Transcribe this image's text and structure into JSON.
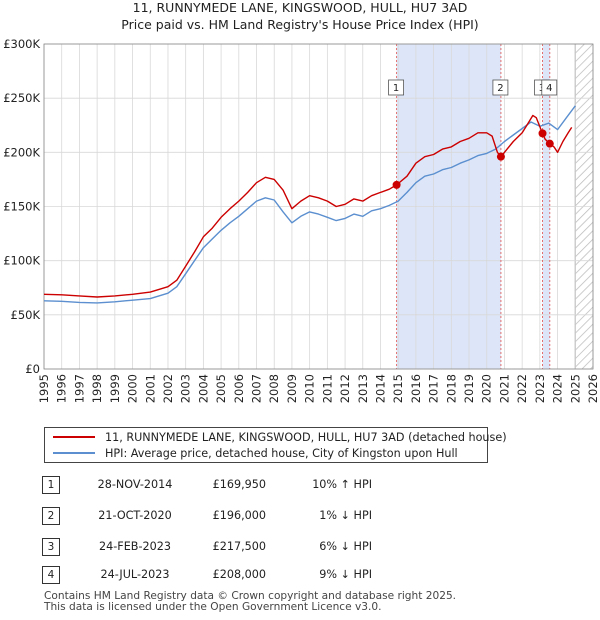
{
  "chart_data": {
    "type": "line",
    "title": "11, RUNNYMEDE LANE, KINGSWOOD, HULL, HU7 3AD",
    "subtitle": "Price paid vs. HM Land Registry's House Price Index (HPI)",
    "xlabel": "",
    "ylabel": "",
    "xlim": [
      1995,
      2026
    ],
    "ylim": [
      0,
      300000
    ],
    "x_ticks": [
      1995,
      1996,
      1997,
      1998,
      1999,
      2000,
      2001,
      2002,
      2003,
      2004,
      2005,
      2006,
      2007,
      2008,
      2009,
      2010,
      2011,
      2012,
      2013,
      2014,
      2015,
      2016,
      2017,
      2018,
      2019,
      2020,
      2021,
      2022,
      2023,
      2024,
      2025,
      2026
    ],
    "y_ticks": [
      {
        "value": 0,
        "label": "£0"
      },
      {
        "value": 50000,
        "label": "£50K"
      },
      {
        "value": 100000,
        "label": "£100K"
      },
      {
        "value": 150000,
        "label": "£150K"
      },
      {
        "value": 200000,
        "label": "£200K"
      },
      {
        "value": 250000,
        "label": "£250K"
      },
      {
        "value": 300000,
        "label": "£300K"
      }
    ],
    "grid": true,
    "forecast_from": 2025.0,
    "series": [
      {
        "name": "11, RUNNYMEDE LANE, KINGSWOOD, HULL, HU7 3AD (detached house)",
        "color": "#cc0000",
        "x": [
          1995,
          1996,
          1997,
          1998,
          1999,
          2000,
          2001,
          2002,
          2002.5,
          2003,
          2003.5,
          2004,
          2004.5,
          2005,
          2005.5,
          2006,
          2006.5,
          2007,
          2007.5,
          2008,
          2008.5,
          2009,
          2009.5,
          2010,
          2010.5,
          2011,
          2011.5,
          2012,
          2012.5,
          2013,
          2013.5,
          2014,
          2014.5,
          2014.91,
          2015.5,
          2016,
          2016.5,
          2017,
          2017.5,
          2018,
          2018.5,
          2019,
          2019.5,
          2020,
          2020.3,
          2020.6,
          2020.8,
          2021,
          2021.5,
          2022,
          2022.3,
          2022.6,
          2022.8,
          2023.15,
          2023.3,
          2023.56,
          2023.8,
          2024,
          2024.3,
          2024.6,
          2024.8
        ],
        "y": [
          69000,
          68500,
          67500,
          66500,
          67500,
          69000,
          71000,
          76000,
          82000,
          95000,
          108000,
          122000,
          130000,
          140000,
          148000,
          155000,
          163000,
          172000,
          177000,
          175000,
          165000,
          148000,
          155000,
          160000,
          158000,
          155000,
          150000,
          152000,
          157000,
          155000,
          160000,
          163000,
          166000,
          169950,
          178000,
          190000,
          196000,
          198000,
          203000,
          205000,
          210000,
          213000,
          218000,
          218000,
          215000,
          200000,
          196000,
          200000,
          210000,
          218000,
          226000,
          234000,
          232000,
          217500,
          212000,
          208000,
          205000,
          200000,
          210000,
          218000,
          223000
        ]
      },
      {
        "name": "HPI: Average price, detached house, City of Kingston upon Hull",
        "color": "#5b8fcf",
        "x": [
          1995,
          1996,
          1997,
          1998,
          1999,
          2000,
          2001,
          2002,
          2002.5,
          2003,
          2003.5,
          2004,
          2004.5,
          2005,
          2005.5,
          2006,
          2006.5,
          2007,
          2007.5,
          2008,
          2008.5,
          2009,
          2009.5,
          2010,
          2010.5,
          2011,
          2011.5,
          2012,
          2012.5,
          2013,
          2013.5,
          2014,
          2014.5,
          2015,
          2015.5,
          2016,
          2016.5,
          2017,
          2017.5,
          2018,
          2018.5,
          2019,
          2019.5,
          2020,
          2020.5,
          2021,
          2021.5,
          2022,
          2022.5,
          2023,
          2023.5,
          2024,
          2024.5,
          2025
        ],
        "y": [
          63000,
          62500,
          61500,
          61000,
          62000,
          63500,
          65000,
          70000,
          76000,
          88000,
          100000,
          112000,
          120000,
          128000,
          135000,
          141000,
          148000,
          155000,
          158000,
          156000,
          145000,
          135000,
          141000,
          145000,
          143000,
          140000,
          137000,
          139000,
          143000,
          141000,
          146000,
          148000,
          151000,
          155000,
          163000,
          172000,
          178000,
          180000,
          184000,
          186000,
          190000,
          193000,
          197000,
          199000,
          203000,
          210000,
          216000,
          222000,
          228000,
          224000,
          227000,
          221000,
          232000,
          243000
        ]
      }
    ],
    "transactions": [
      {
        "id": "1",
        "x": 2014.91,
        "y": 169950
      },
      {
        "id": "2",
        "x": 2020.8,
        "y": 196000
      },
      {
        "id": "3",
        "x": 2023.15,
        "y": 217500
      },
      {
        "id": "4",
        "x": 2023.56,
        "y": 208000
      }
    ],
    "highlight_ranges": [
      [
        2014.91,
        2020.8
      ],
      [
        2023.15,
        2023.56
      ]
    ]
  },
  "legend": {
    "property_label": "11, RUNNYMEDE LANE, KINGSWOOD, HULL, HU7 3AD (detached house)",
    "hpi_label": "HPI: Average price, detached house, City of Kingston upon Hull",
    "property_color": "#cc0000",
    "hpi_color": "#5b8fcf"
  },
  "table": {
    "rows": [
      {
        "num": "1",
        "date": "28-NOV-2014",
        "price": "£169,950",
        "hpi": "10% ↑ HPI"
      },
      {
        "num": "2",
        "date": "21-OCT-2020",
        "price": "£196,000",
        "hpi": "1% ↓ HPI"
      },
      {
        "num": "3",
        "date": "24-FEB-2023",
        "price": "£217,500",
        "hpi": "6% ↓ HPI"
      },
      {
        "num": "4",
        "date": "24-JUL-2023",
        "price": "£208,000",
        "hpi": "9% ↓ HPI"
      }
    ]
  },
  "footer": {
    "line1": "Contains HM Land Registry data © Crown copyright and database right 2025.",
    "line2": "This data is licensed under the Open Government Licence v3.0."
  }
}
